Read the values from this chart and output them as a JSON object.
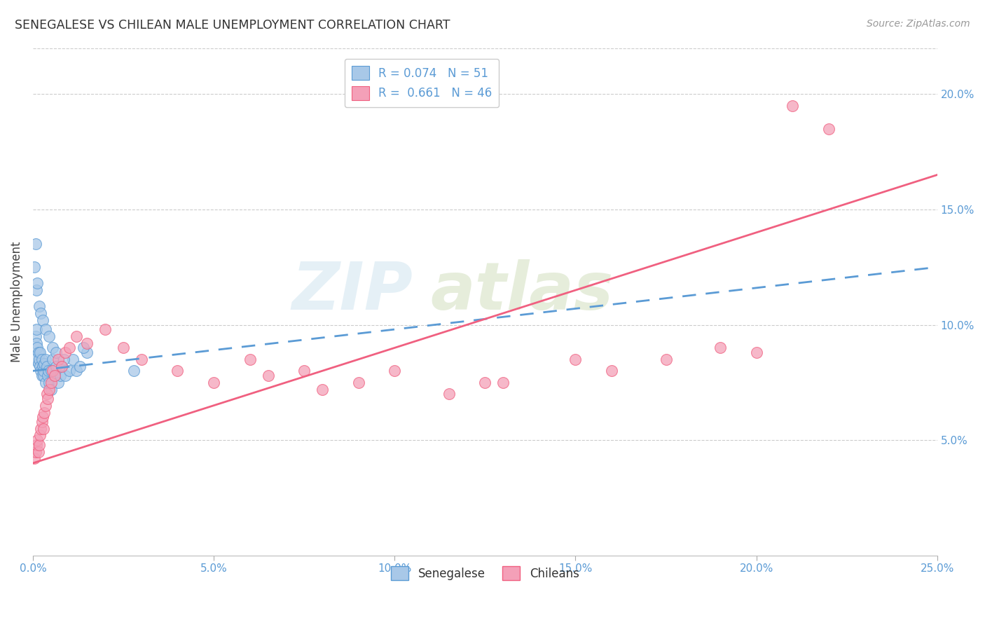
{
  "title": "SENEGALESE VS CHILEAN MALE UNEMPLOYMENT CORRELATION CHART",
  "source": "Source: ZipAtlas.com",
  "ylabel": "Male Unemployment",
  "watermark_line1": "ZIP",
  "watermark_line2": "atlas",
  "ytick_labels": [
    "5.0%",
    "10.0%",
    "15.0%",
    "20.0%"
  ],
  "ytick_values": [
    5,
    10,
    15,
    20
  ],
  "xtick_labels": [
    "0.0%",
    "5.0%",
    "10.0%",
    "15.0%",
    "20.0%",
    "25.0%"
  ],
  "xtick_values": [
    0,
    5,
    10,
    15,
    20,
    25
  ],
  "xlim": [
    0,
    25
  ],
  "ylim": [
    0,
    22
  ],
  "senegalese_color": "#a8c8e8",
  "chilean_color": "#f4a0b8",
  "senegalese_line_color": "#5b9bd5",
  "chilean_line_color": "#f06080",
  "background_color": "#ffffff",
  "grid_color": "#cccccc",
  "senegalese_x": [
    0.05,
    0.08,
    0.1,
    0.1,
    0.12,
    0.15,
    0.15,
    0.18,
    0.2,
    0.2,
    0.22,
    0.25,
    0.25,
    0.28,
    0.3,
    0.3,
    0.32,
    0.35,
    0.35,
    0.38,
    0.4,
    0.42,
    0.45,
    0.5,
    0.5,
    0.55,
    0.6,
    0.65,
    0.7,
    0.75,
    0.8,
    0.9,
    1.0,
    1.1,
    1.2,
    1.3,
    1.5,
    0.05,
    0.07,
    0.1,
    0.12,
    0.18,
    0.22,
    0.28,
    0.35,
    0.45,
    0.55,
    0.65,
    0.85,
    1.4,
    2.8
  ],
  "senegalese_y": [
    8.5,
    9.5,
    9.8,
    9.2,
    9.0,
    8.8,
    8.3,
    8.5,
    8.2,
    8.8,
    8.0,
    8.5,
    7.8,
    8.2,
    7.8,
    8.0,
    8.3,
    7.5,
    8.5,
    8.2,
    7.8,
    8.0,
    7.5,
    8.0,
    7.2,
    8.5,
    7.8,
    8.2,
    7.5,
    7.8,
    8.2,
    7.8,
    8.0,
    8.5,
    8.0,
    8.2,
    8.8,
    12.5,
    13.5,
    11.5,
    11.8,
    10.8,
    10.5,
    10.2,
    9.8,
    9.5,
    9.0,
    8.8,
    8.5,
    9.0,
    8.0
  ],
  "chilean_x": [
    0.05,
    0.08,
    0.1,
    0.12,
    0.15,
    0.18,
    0.2,
    0.22,
    0.25,
    0.28,
    0.3,
    0.32,
    0.35,
    0.38,
    0.4,
    0.45,
    0.5,
    0.55,
    0.6,
    0.7,
    0.8,
    0.9,
    1.0,
    1.2,
    1.5,
    2.0,
    2.5,
    3.0,
    4.0,
    5.0,
    6.5,
    8.0,
    9.0,
    10.0,
    11.5,
    13.0,
    15.0,
    16.0,
    17.5,
    19.0,
    20.0,
    21.0,
    22.0,
    6.0,
    7.5,
    12.5
  ],
  "chilean_y": [
    4.2,
    4.5,
    4.8,
    5.0,
    4.5,
    4.8,
    5.2,
    5.5,
    5.8,
    6.0,
    5.5,
    6.2,
    6.5,
    7.0,
    6.8,
    7.2,
    7.5,
    8.0,
    7.8,
    8.5,
    8.2,
    8.8,
    9.0,
    9.5,
    9.2,
    9.8,
    9.0,
    8.5,
    8.0,
    7.5,
    7.8,
    7.2,
    7.5,
    8.0,
    7.0,
    7.5,
    8.5,
    8.0,
    8.5,
    9.0,
    8.8,
    19.5,
    18.5,
    8.5,
    8.0,
    7.5
  ]
}
